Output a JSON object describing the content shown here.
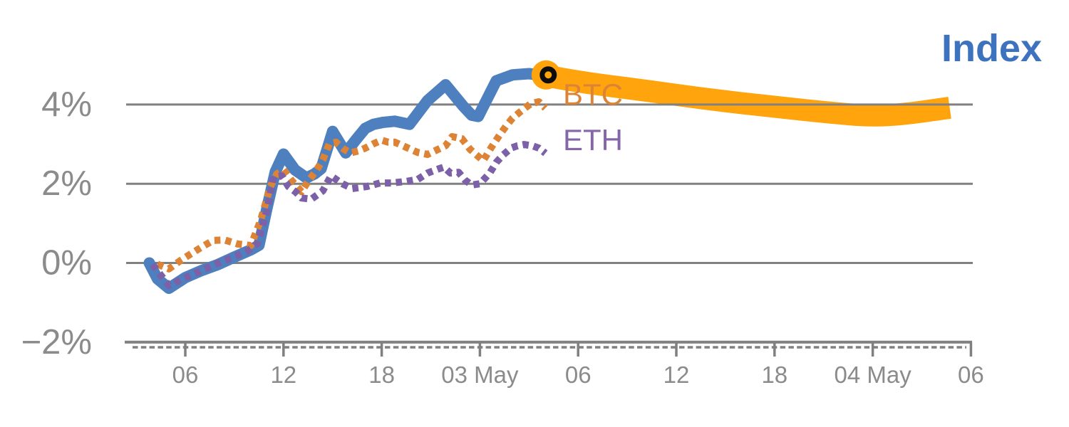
{
  "annotations": {
    "index": {
      "text": "Index",
      "color": "#3D73BE"
    },
    "btc": {
      "text": "BTC",
      "color": "#DB8436"
    },
    "eth": {
      "text": "ETH",
      "color": "#8566A9"
    }
  },
  "colors": {
    "background": "#FFFFFF",
    "gridline": "#808080",
    "axis_text": "#8B8B8B",
    "index_line": "#4E7FBE",
    "btc_dots": "#DD8335",
    "eth_dots": "#7C60A8",
    "forecast_band": "#FFA40D",
    "marker_ring": "#0D0D0D",
    "marker_fill": "#FFA40D"
  },
  "chart_data": {
    "type": "line",
    "title": "Index",
    "x_axis": {
      "unit": "hours since 02 May 00:00",
      "tick_hours": [
        6,
        12,
        18,
        24,
        30,
        36,
        42,
        48,
        54
      ],
      "tick_labels": [
        "06",
        "12",
        "18",
        "03 May",
        "06",
        "12",
        "18",
        "04 May",
        "06"
      ],
      "minor_tick_style": "dense dashed row below axis",
      "range_hours": [
        2.3,
        54.3
      ]
    },
    "y_axis": {
      "unit": "%",
      "ticks": [
        4,
        2,
        0,
        -2
      ],
      "tick_labels": [
        "4%",
        "2%",
        "0%",
        "−2%"
      ],
      "range": [
        -2,
        5.3
      ],
      "grid": true
    },
    "legend_position": "inline-annotations",
    "series": [
      {
        "name": "Index",
        "style": "solid",
        "color": "#4E7FBE",
        "hours": [
          3.8,
          4.3,
          5.0,
          6.0,
          7.0,
          8.0,
          9.0,
          10.0,
          10.5,
          11.0,
          11.5,
          12.0,
          12.7,
          13.4,
          13.9,
          14.3,
          15.0,
          15.8,
          16.4,
          17.0,
          17.5,
          18.1,
          18.8,
          19.7,
          20.8,
          21.9,
          23.0,
          23.5,
          23.9,
          25.0,
          26.0,
          27.0,
          28.0
        ],
        "values": [
          0.0,
          -0.4,
          -0.64,
          -0.37,
          -0.19,
          -0.04,
          0.15,
          0.33,
          0.45,
          1.4,
          2.3,
          2.75,
          2.35,
          2.15,
          2.25,
          2.38,
          3.32,
          2.78,
          3.1,
          3.4,
          3.5,
          3.55,
          3.58,
          3.5,
          4.1,
          4.5,
          3.95,
          3.73,
          3.7,
          4.6,
          4.75,
          4.78,
          4.73
        ]
      },
      {
        "name": "BTC",
        "style": "dotted",
        "color": "#DD8335",
        "hours": [
          4.3,
          5.0,
          5.7,
          6.3,
          7.0,
          7.7,
          8.4,
          9.2,
          10.0,
          10.6,
          11.2,
          11.6,
          12.0,
          12.5,
          13.1,
          13.5,
          14.0,
          14.4,
          14.8,
          15.2,
          15.7,
          16.1,
          16.6,
          17.0,
          17.5,
          18.0,
          18.4,
          18.8,
          19.5,
          20.2,
          20.8,
          21.9,
          22.3,
          22.9,
          23.4,
          24.2,
          24.7,
          25.2,
          25.6,
          26.0,
          26.6,
          27.1,
          27.6,
          28.0
        ],
        "values": [
          -0.03,
          -0.15,
          0.06,
          0.22,
          0.4,
          0.57,
          0.58,
          0.48,
          0.44,
          1.07,
          1.93,
          2.25,
          2.35,
          2.08,
          1.8,
          2.06,
          2.33,
          2.6,
          3.01,
          3.05,
          2.87,
          2.78,
          2.83,
          2.9,
          3.01,
          3.1,
          3.05,
          3.05,
          2.92,
          2.79,
          2.74,
          2.96,
          3.19,
          3.14,
          2.87,
          2.58,
          2.92,
          3.23,
          3.46,
          3.66,
          3.86,
          4.02,
          4.07,
          3.91
        ]
      },
      {
        "name": "ETH",
        "style": "dotted",
        "color": "#7C60A8",
        "hours": [
          4.0,
          5.0,
          5.9,
          6.9,
          7.8,
          8.8,
          9.8,
          10.4,
          11.0,
          11.4,
          11.9,
          12.3,
          12.75,
          13.1,
          13.7,
          14.4,
          14.9,
          15.6,
          16.2,
          17.1,
          17.9,
          18.6,
          19.5,
          20.2,
          20.8,
          21.5,
          21.8,
          22.2,
          22.7,
          23.1,
          23.5,
          24.0,
          24.6,
          25.0,
          25.4,
          25.9,
          26.3,
          26.7,
          27.2,
          27.6,
          28.0
        ],
        "values": [
          -0.04,
          -0.57,
          -0.39,
          -0.21,
          -0.04,
          0.12,
          0.3,
          0.49,
          1.34,
          2.18,
          2.2,
          1.93,
          1.79,
          1.64,
          1.61,
          1.82,
          2.2,
          2.0,
          1.88,
          1.93,
          2.02,
          2.02,
          2.06,
          2.11,
          2.27,
          2.38,
          2.42,
          2.27,
          2.29,
          2.09,
          1.97,
          2.0,
          2.27,
          2.54,
          2.72,
          2.9,
          2.96,
          2.99,
          2.96,
          2.9,
          2.77
        ]
      }
    ],
    "forecast": {
      "name": "Index forecast band",
      "color": "#FFA40D",
      "hours": [
        28.0,
        30.0,
        34.0,
        38.0,
        42.0,
        46.0,
        48.0,
        50.0,
        52.7
      ],
      "values": [
        4.73,
        4.57,
        4.36,
        4.13,
        3.94,
        3.77,
        3.71,
        3.76,
        3.92
      ]
    },
    "marker": {
      "hour": 28.0,
      "value": 4.73,
      "description": "black ring on amber disc at junction of history and forecast"
    }
  }
}
